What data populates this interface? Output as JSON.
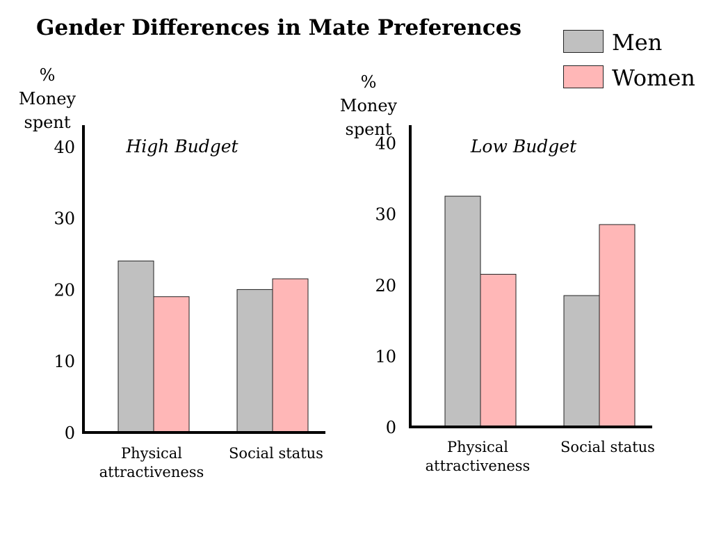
{
  "title": "Gender Differences in Mate Preferences",
  "legend": [
    {
      "label": "Men",
      "color": "#c0c0c0"
    },
    {
      "label": "Women",
      "color": "#ffb7b7"
    }
  ],
  "chart_data": [
    {
      "type": "bar",
      "title": "High Budget",
      "ylabel": [
        "%",
        "Money",
        "spent"
      ],
      "categories": [
        "Physical attractiveness",
        "Social status"
      ],
      "category_lines": [
        [
          "Physical",
          "attractiveness"
        ],
        [
          "Social status"
        ]
      ],
      "series": [
        {
          "name": "Men",
          "values": [
            24,
            20
          ]
        },
        {
          "name": "Women",
          "values": [
            19,
            21.5
          ]
        }
      ],
      "yticks": [
        0,
        10,
        20,
        30,
        40
      ],
      "ylim": [
        0,
        43
      ],
      "grid": false,
      "legend": "top-right"
    },
    {
      "type": "bar",
      "title": "Low Budget",
      "ylabel": [
        "%",
        "Money",
        "spent"
      ],
      "categories": [
        "Physical attractiveness",
        "Social status"
      ],
      "category_lines": [
        [
          "Physical",
          "attractiveness"
        ],
        [
          "Social status"
        ]
      ],
      "series": [
        {
          "name": "Men",
          "values": [
            32.5,
            18.5
          ]
        },
        {
          "name": "Women",
          "values": [
            21.5,
            28.5
          ]
        }
      ],
      "yticks": [
        0,
        10,
        20,
        30,
        40
      ],
      "ylim": [
        0,
        42.5
      ],
      "grid": false,
      "legend": "top-right"
    }
  ]
}
